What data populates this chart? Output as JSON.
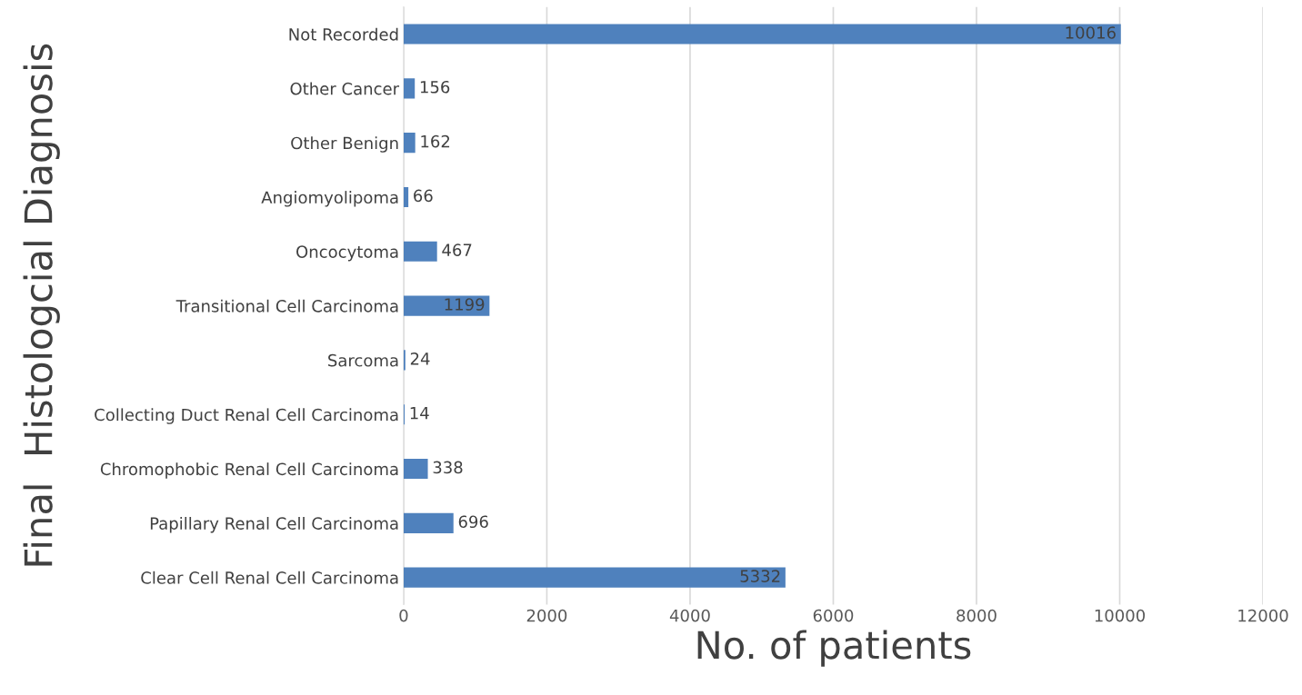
{
  "chart_data": {
    "type": "bar",
    "orientation": "horizontal",
    "categories": [
      "Not Recorded",
      "Other Cancer",
      "Other Benign",
      "Angiomyolipoma",
      "Oncocytoma",
      "Transitional Cell Carcinoma",
      "Sarcoma",
      "Collecting Duct Renal Cell Carcinoma",
      "Chromophobic Renal Cell Carcinoma",
      "Papillary Renal Cell Carcinoma",
      "Clear Cell Renal Cell Carcinoma"
    ],
    "values": [
      10016,
      156,
      162,
      66,
      467,
      1199,
      24,
      14,
      338,
      696,
      5332
    ],
    "color": "#4f81bd",
    "xlabel": "No. of patients",
    "ylabel": "Final  Histologcial Diagnosis",
    "xlim": [
      0,
      12000
    ],
    "xticks": [
      0,
      2000,
      4000,
      6000,
      8000,
      10000,
      12000
    ],
    "grid": "x",
    "data_labels": true
  }
}
